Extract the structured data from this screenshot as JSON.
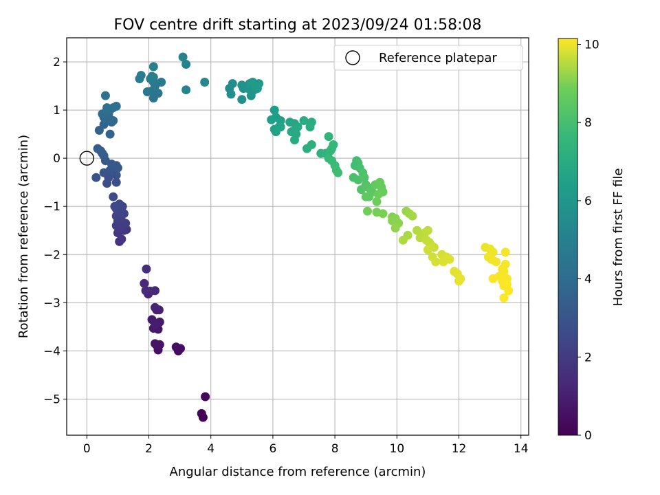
{
  "chart_data": {
    "type": "scatter",
    "title": "FOV centre drift starting at 2023/09/24 01:58:08",
    "xlabel": "Angular distance from reference (arcmin)",
    "ylabel": "Rotation from reference (arcmin)",
    "xlim": [
      -0.65,
      14.25
    ],
    "ylim": [
      -5.75,
      2.5
    ],
    "xticks": [
      0,
      2,
      4,
      6,
      8,
      10,
      12,
      14
    ],
    "yticks": [
      2,
      1,
      0,
      -1,
      -2,
      -3,
      -4,
      -5
    ],
    "grid": true,
    "legend": {
      "position": "top-right",
      "label": "Reference platepar"
    },
    "colorbar": {
      "label": "Hours from first FF file",
      "range": [
        0,
        10.15
      ],
      "ticks": [
        0,
        2,
        4,
        6,
        8,
        10
      ],
      "colormap": "viridis"
    },
    "reference_point": {
      "x": 0,
      "y": 0
    },
    "points": [
      [
        3.75,
        -5.38,
        0.05
      ],
      [
        3.7,
        -5.3,
        0.1
      ],
      [
        3.82,
        -4.95,
        0.2
      ],
      [
        2.95,
        -4.0,
        0.35
      ],
      [
        3.02,
        -3.95,
        0.4
      ],
      [
        2.88,
        -3.92,
        0.45
      ],
      [
        2.3,
        -3.98,
        0.5
      ],
      [
        2.25,
        -3.88,
        0.55
      ],
      [
        2.35,
        -3.87,
        0.6
      ],
      [
        2.2,
        -3.85,
        0.62
      ],
      [
        2.3,
        -3.55,
        0.7
      ],
      [
        2.15,
        -3.53,
        0.75
      ],
      [
        2.35,
        -3.4,
        0.8
      ],
      [
        2.1,
        -3.35,
        0.85
      ],
      [
        2.2,
        -3.45,
        0.9
      ],
      [
        2.25,
        -3.15,
        1.0
      ],
      [
        2.33,
        -3.15,
        1.05
      ],
      [
        2.2,
        -3.1,
        1.1
      ],
      [
        1.98,
        -2.82,
        1.2
      ],
      [
        2.05,
        -2.76,
        1.25
      ],
      [
        2.2,
        -2.75,
        1.3
      ],
      [
        1.9,
        -2.75,
        1.35
      ],
      [
        1.85,
        -2.6,
        1.4
      ],
      [
        1.92,
        -2.3,
        1.5
      ],
      [
        1.05,
        -1.73,
        1.7
      ],
      [
        1.12,
        -1.68,
        1.75
      ],
      [
        1.0,
        -1.55,
        1.8
      ],
      [
        1.2,
        -1.5,
        1.85
      ],
      [
        1.28,
        -1.48,
        1.9
      ],
      [
        1.05,
        -1.45,
        1.95
      ],
      [
        0.95,
        -1.4,
        2.0
      ],
      [
        1.15,
        -1.38,
        2.05
      ],
      [
        1.25,
        -1.35,
        2.1
      ],
      [
        1.0,
        -1.3,
        2.15
      ],
      [
        1.1,
        -1.25,
        2.2
      ],
      [
        0.95,
        -1.2,
        2.25
      ],
      [
        1.2,
        -1.15,
        2.3
      ],
      [
        1.05,
        -1.1,
        2.35
      ],
      [
        0.95,
        -1.05,
        2.4
      ],
      [
        1.15,
        -1.0,
        2.45
      ],
      [
        1.05,
        -0.95,
        2.5
      ],
      [
        0.9,
        -1.0,
        2.55
      ],
      [
        0.85,
        -0.8,
        2.6
      ],
      [
        0.95,
        -0.5,
        2.7
      ],
      [
        0.65,
        -0.52,
        2.75
      ],
      [
        0.7,
        -0.4,
        2.8
      ],
      [
        0.95,
        -0.35,
        2.85
      ],
      [
        0.3,
        -0.4,
        2.9
      ],
      [
        0.55,
        -0.3,
        2.95
      ],
      [
        0.75,
        -0.25,
        3.0
      ],
      [
        0.85,
        -0.2,
        3.05
      ],
      [
        0.95,
        -0.15,
        3.1
      ],
      [
        1.0,
        -0.2,
        3.15
      ],
      [
        0.8,
        -0.12,
        3.2
      ],
      [
        0.6,
        -0.05,
        3.25
      ],
      [
        0.55,
        0.05,
        3.3
      ],
      [
        0.5,
        0.1,
        3.35
      ],
      [
        0.35,
        0.2,
        3.4
      ],
      [
        0.45,
        0.15,
        3.45
      ],
      [
        0.4,
        0.58,
        3.55
      ],
      [
        0.75,
        0.5,
        3.6
      ],
      [
        0.55,
        0.7,
        3.65
      ],
      [
        0.65,
        0.8,
        3.7
      ],
      [
        0.8,
        0.75,
        3.75
      ],
      [
        0.85,
        0.78,
        3.8
      ],
      [
        0.55,
        0.85,
        3.85
      ],
      [
        0.7,
        0.9,
        3.9
      ],
      [
        0.5,
        0.92,
        3.95
      ],
      [
        0.75,
        1.0,
        4.0
      ],
      [
        0.6,
        0.95,
        4.05
      ],
      [
        0.85,
        1.05,
        4.1
      ],
      [
        0.65,
        1.05,
        4.15
      ],
      [
        0.95,
        1.08,
        4.2
      ],
      [
        0.6,
        1.3,
        4.25
      ],
      [
        2.15,
        1.25,
        4.4
      ],
      [
        2.3,
        1.35,
        4.45
      ],
      [
        2.1,
        1.4,
        4.5
      ],
      [
        1.95,
        1.38,
        4.55
      ],
      [
        2.2,
        1.5,
        4.6
      ],
      [
        2.15,
        1.58,
        4.65
      ],
      [
        2.4,
        1.58,
        4.7
      ],
      [
        2.05,
        1.65,
        4.75
      ],
      [
        1.7,
        1.65,
        4.8
      ],
      [
        1.75,
        1.72,
        4.85
      ],
      [
        2.15,
        1.68,
        4.9
      ],
      [
        2.1,
        1.7,
        4.95
      ],
      [
        2.15,
        1.9,
        5.0
      ],
      [
        3.2,
        1.95,
        5.05
      ],
      [
        3.1,
        2.1,
        5.1
      ],
      [
        3.2,
        1.42,
        5.2
      ],
      [
        3.8,
        1.58,
        5.35
      ],
      [
        4.6,
        1.45,
        5.5
      ],
      [
        4.7,
        1.55,
        5.55
      ],
      [
        4.65,
        1.33,
        5.6
      ],
      [
        5.0,
        1.22,
        5.7
      ],
      [
        5.05,
        1.45,
        5.75
      ],
      [
        5.0,
        1.52,
        5.8
      ],
      [
        5.3,
        1.3,
        5.85
      ],
      [
        5.2,
        1.45,
        5.9
      ],
      [
        5.4,
        1.42,
        5.95
      ],
      [
        5.25,
        1.55,
        6.0
      ],
      [
        5.35,
        1.58,
        6.05
      ],
      [
        5.5,
        1.45,
        6.1
      ],
      [
        5.55,
        1.55,
        6.15
      ],
      [
        5.45,
        1.5,
        6.2
      ],
      [
        6.05,
        1.0,
        6.3
      ],
      [
        6.1,
        0.85,
        6.35
      ],
      [
        5.95,
        0.8,
        6.4
      ],
      [
        6.25,
        0.78,
        6.45
      ],
      [
        6.2,
        0.65,
        6.5
      ],
      [
        6.1,
        0.55,
        6.55
      ],
      [
        6.05,
        0.6,
        6.6
      ],
      [
        6.25,
        0.65,
        6.65
      ],
      [
        6.55,
        0.75,
        6.7
      ],
      [
        6.7,
        0.72,
        6.75
      ],
      [
        6.6,
        0.55,
        6.8
      ],
      [
        6.8,
        0.65,
        6.85
      ],
      [
        6.75,
        0.5,
        6.9
      ],
      [
        6.7,
        0.38,
        6.95
      ],
      [
        7.0,
        0.78,
        7.0
      ],
      [
        7.25,
        0.75,
        7.05
      ],
      [
        7.2,
        0.65,
        7.1
      ],
      [
        7.1,
        0.2,
        7.15
      ],
      [
        7.25,
        0.28,
        7.2
      ],
      [
        7.55,
        0.1,
        7.25
      ],
      [
        7.7,
        0.1,
        7.35
      ],
      [
        7.8,
        0.45,
        7.45
      ],
      [
        7.85,
        0.15,
        7.5
      ],
      [
        7.9,
        0.2,
        7.55
      ],
      [
        7.95,
        0.28,
        7.6
      ],
      [
        7.8,
        0.0,
        7.65
      ],
      [
        7.9,
        -0.05,
        7.7
      ],
      [
        8.0,
        -0.15,
        7.75
      ],
      [
        8.05,
        -0.25,
        7.8
      ],
      [
        8.1,
        -0.3,
        7.82
      ],
      [
        8.7,
        -0.05,
        7.85
      ],
      [
        8.65,
        -0.15,
        7.9
      ],
      [
        8.75,
        -0.1,
        7.95
      ],
      [
        8.8,
        -0.2,
        8.0
      ],
      [
        8.6,
        -0.4,
        8.05
      ],
      [
        8.75,
        -0.45,
        8.1
      ],
      [
        8.9,
        -0.3,
        8.15
      ],
      [
        8.95,
        -0.4,
        8.2
      ],
      [
        8.85,
        -0.65,
        8.25
      ],
      [
        9.0,
        -0.55,
        8.3
      ],
      [
        9.05,
        -0.6,
        8.35
      ],
      [
        9.15,
        -0.65,
        8.4
      ],
      [
        9.2,
        -0.7,
        8.45
      ],
      [
        9.1,
        -0.8,
        8.5
      ],
      [
        9.0,
        -0.8,
        8.55
      ],
      [
        9.3,
        -0.55,
        8.6
      ],
      [
        9.45,
        -0.5,
        8.65
      ],
      [
        9.5,
        -0.6,
        8.7
      ],
      [
        9.55,
        -0.7,
        8.75
      ],
      [
        9.4,
        -0.75,
        8.8
      ],
      [
        9.35,
        -0.9,
        8.85
      ],
      [
        9.05,
        -1.1,
        8.9
      ],
      [
        9.35,
        -1.12,
        8.95
      ],
      [
        9.55,
        -1.15,
        9.0
      ],
      [
        9.85,
        -1.22,
        9.05
      ],
      [
        9.95,
        -1.25,
        9.1
      ],
      [
        9.85,
        -1.3,
        9.12
      ],
      [
        10.05,
        -1.35,
        9.15
      ],
      [
        9.95,
        -1.45,
        9.2
      ],
      [
        10.3,
        -1.1,
        9.25
      ],
      [
        10.4,
        -1.15,
        9.3
      ],
      [
        10.5,
        -1.2,
        9.35
      ],
      [
        10.35,
        -1.6,
        9.4
      ],
      [
        10.2,
        -1.7,
        9.45
      ],
      [
        10.65,
        -1.5,
        9.5
      ],
      [
        10.8,
        -1.58,
        9.52
      ],
      [
        10.75,
        -1.65,
        9.55
      ],
      [
        10.9,
        -1.55,
        9.58
      ],
      [
        11.0,
        -1.5,
        9.6
      ],
      [
        10.95,
        -1.7,
        9.62
      ],
      [
        11.05,
        -1.75,
        9.65
      ],
      [
        11.1,
        -1.8,
        9.68
      ],
      [
        11.2,
        -1.85,
        9.7
      ],
      [
        11.0,
        -1.9,
        9.72
      ],
      [
        11.15,
        -2.05,
        9.75
      ],
      [
        11.25,
        -2.15,
        9.78
      ],
      [
        11.45,
        -2.0,
        9.8
      ],
      [
        11.6,
        -2.05,
        9.82
      ],
      [
        11.5,
        -2.15,
        9.85
      ],
      [
        11.7,
        -2.1,
        9.87
      ],
      [
        11.85,
        -2.35,
        9.9
      ],
      [
        11.95,
        -2.4,
        9.92
      ],
      [
        12.0,
        -2.55,
        9.94
      ],
      [
        12.05,
        -2.5,
        9.96
      ],
      [
        12.85,
        -1.85,
        9.98
      ],
      [
        13.0,
        -1.88,
        10.0
      ],
      [
        13.1,
        -1.95,
        10.02
      ],
      [
        12.95,
        -2.05,
        10.04
      ],
      [
        13.05,
        -2.1,
        10.05
      ],
      [
        13.2,
        -2.15,
        10.06
      ],
      [
        13.4,
        -2.3,
        10.07
      ],
      [
        13.5,
        -1.95,
        10.08
      ],
      [
        13.5,
        -2.2,
        10.09
      ],
      [
        13.45,
        -2.35,
        10.1
      ],
      [
        13.3,
        -2.45,
        10.1
      ],
      [
        13.55,
        -2.5,
        10.11
      ],
      [
        13.4,
        -2.55,
        10.11
      ],
      [
        13.45,
        -2.65,
        10.12
      ],
      [
        13.1,
        -2.5,
        10.12
      ],
      [
        13.6,
        -2.75,
        10.13
      ],
      [
        13.45,
        -2.9,
        10.13
      ],
      [
        13.55,
        -2.62,
        10.14
      ]
    ]
  }
}
